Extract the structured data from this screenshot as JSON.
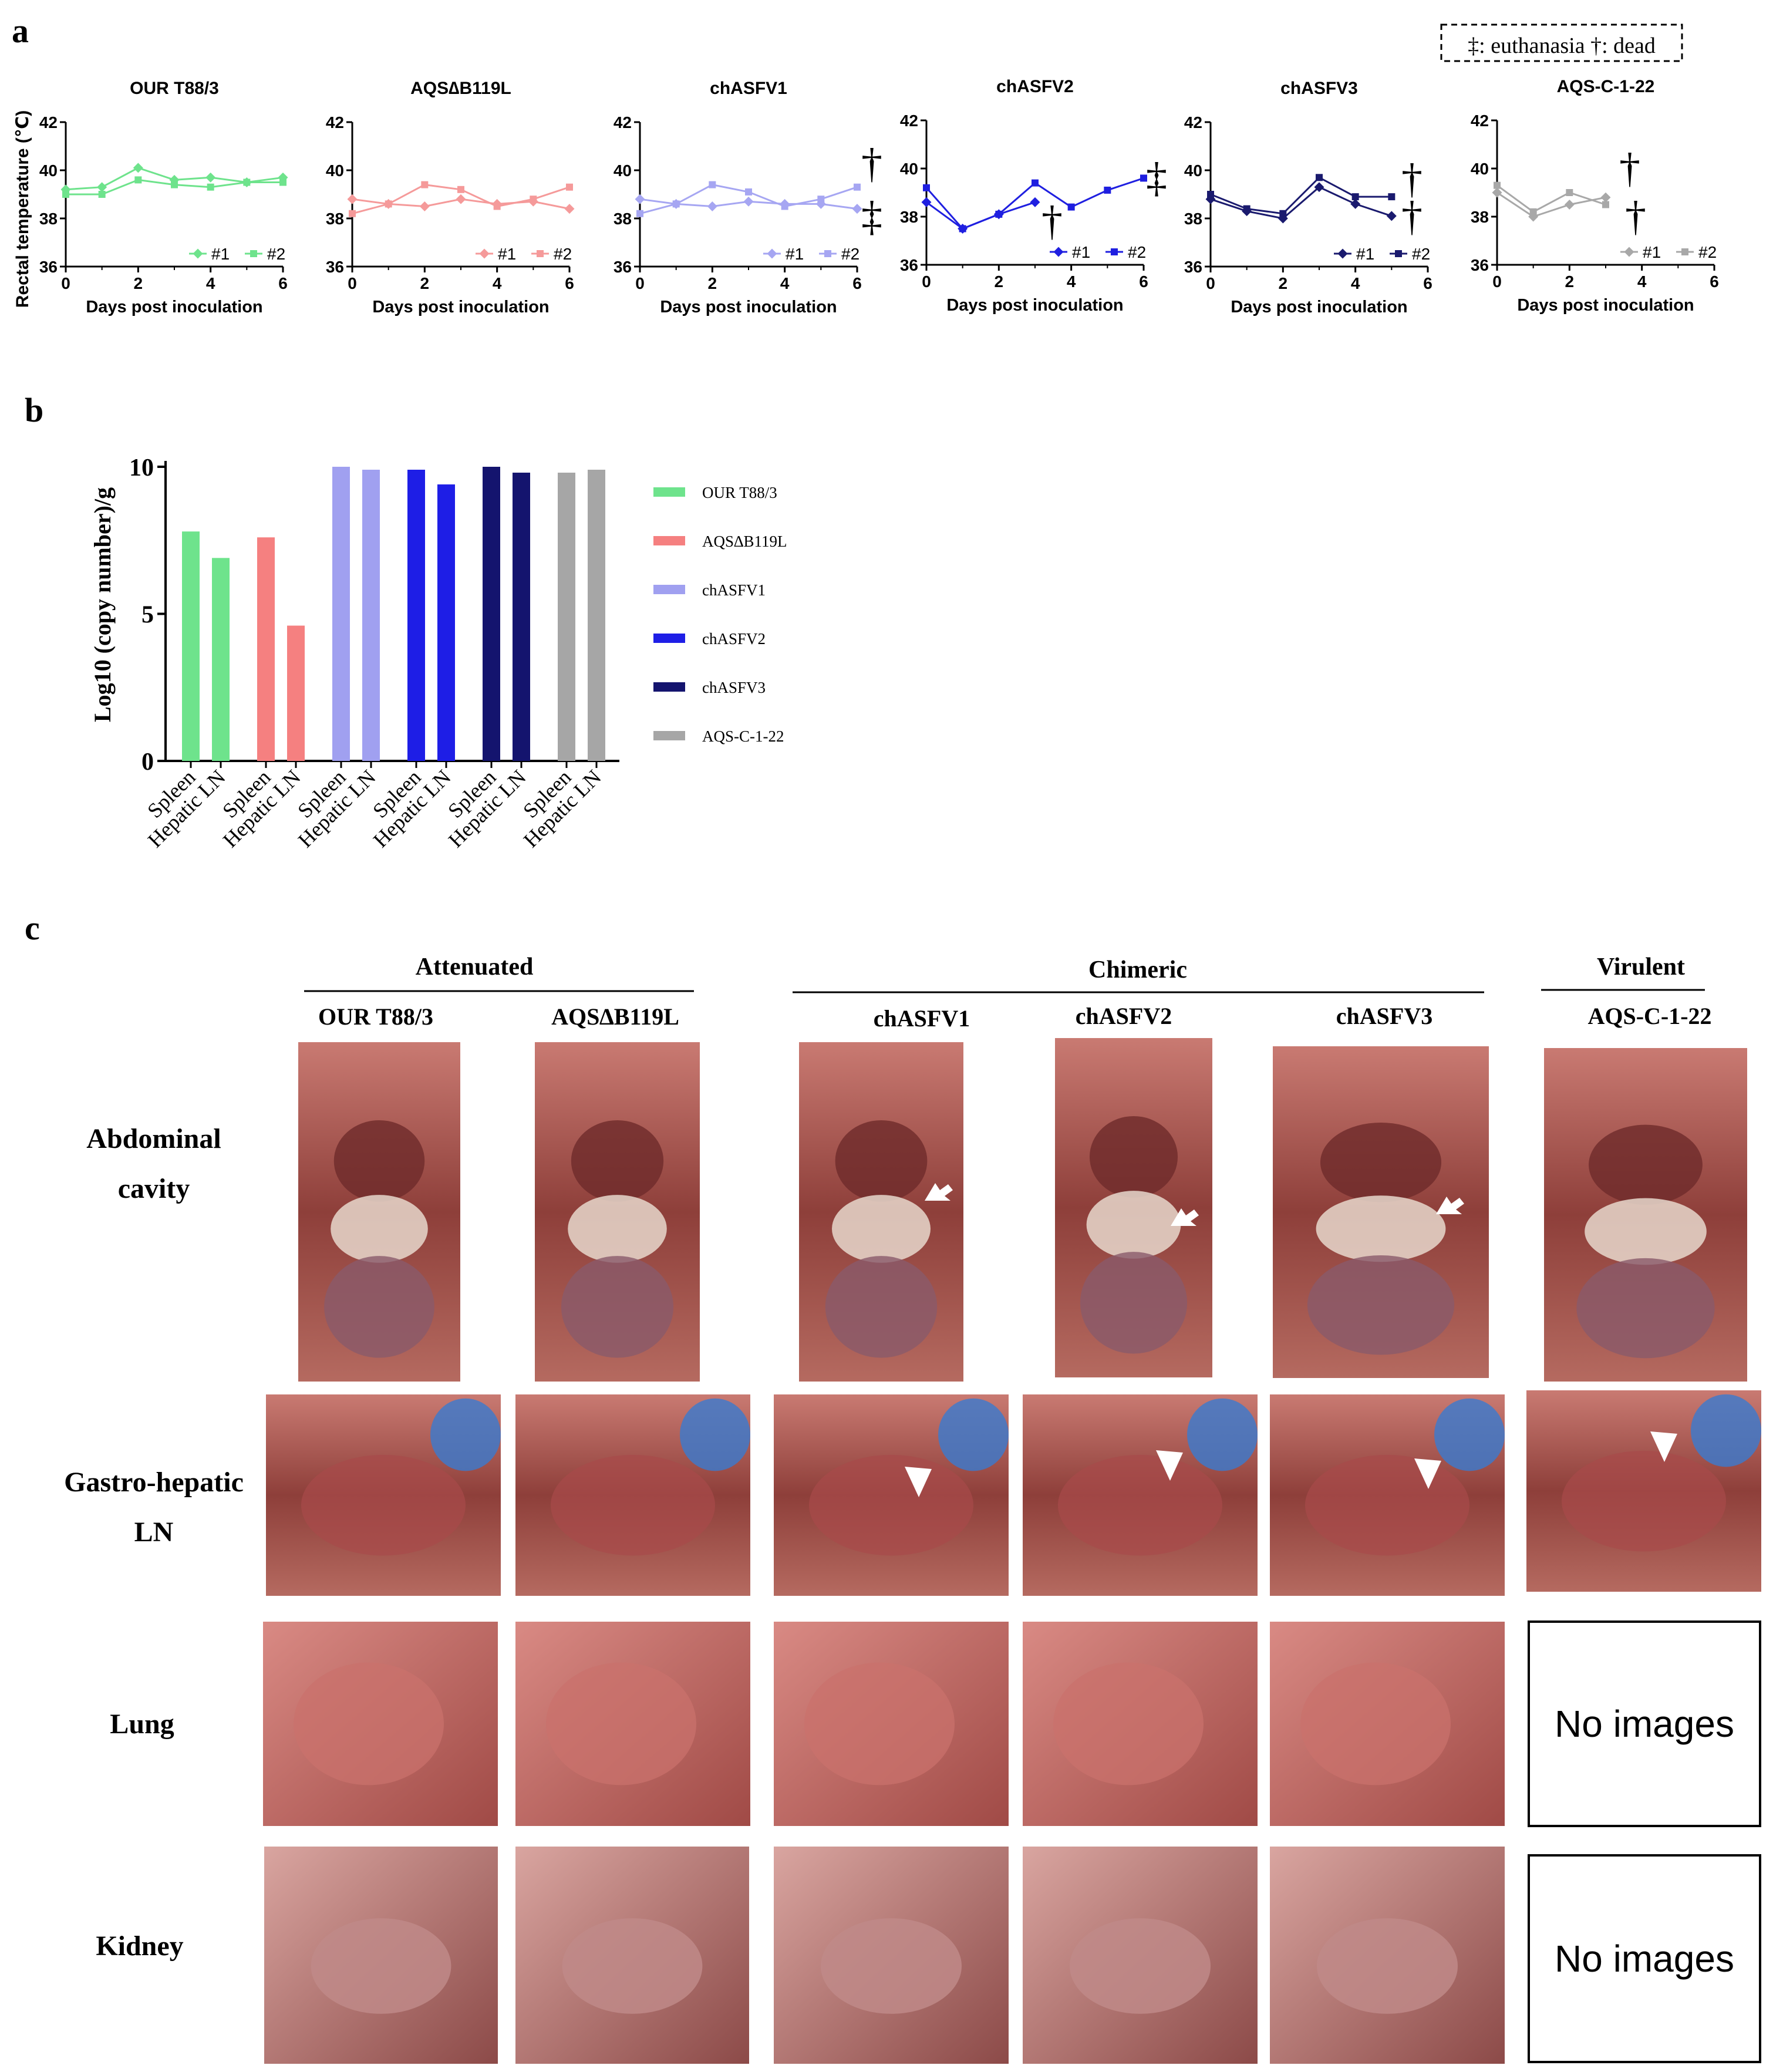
{
  "panel_labels": {
    "a": "a",
    "b": "b",
    "c": "c"
  },
  "legend_box": "‡: euthanasia  †: dead",
  "marks": {
    "dead": "†",
    "euthanasia": "‡"
  },
  "panel_a": {
    "ylabel": "Rectal temperature (℃)",
    "xlabel": "Days post inoculation",
    "series_names": [
      "#1",
      "#2"
    ],
    "x_ticks": [
      "0",
      "2",
      "4",
      "6"
    ],
    "y_ticks": [
      "36",
      "38",
      "40",
      "42"
    ]
  },
  "chart_data": [
    {
      "type": "line",
      "title": "OUR T88/3",
      "xlabel": "Days post inoculation",
      "ylabel": "Rectal temperature (℃)",
      "xlim": [
        0,
        6
      ],
      "ylim": [
        36,
        42
      ],
      "color": "#6ee38c",
      "series": [
        {
          "name": "#1",
          "x": [
            0,
            1,
            2,
            3,
            4,
            5,
            6
          ],
          "y": [
            39.2,
            39.3,
            40.1,
            39.6,
            39.7,
            39.5,
            39.7
          ]
        },
        {
          "name": "#2",
          "x": [
            0,
            1,
            2,
            3,
            4,
            5,
            6
          ],
          "y": [
            39.0,
            39.0,
            39.6,
            39.4,
            39.3,
            39.5,
            39.5
          ]
        }
      ]
    },
    {
      "type": "line",
      "title": "AQS∆B119L",
      "xlabel": "Days post inoculation",
      "ylabel": "Rectal temperature (℃)",
      "xlim": [
        0,
        6
      ],
      "ylim": [
        36,
        42
      ],
      "color": "#f59a9a",
      "series": [
        {
          "name": "#1",
          "x": [
            0,
            1,
            2,
            3,
            4,
            5,
            6
          ],
          "y": [
            38.8,
            38.6,
            38.5,
            38.8,
            38.6,
            38.7,
            38.4
          ]
        },
        {
          "name": "#2",
          "x": [
            0,
            1,
            2,
            3,
            4,
            5,
            6
          ],
          "y": [
            38.2,
            38.6,
            39.4,
            39.2,
            38.5,
            38.8,
            39.3
          ]
        }
      ]
    },
    {
      "type": "line",
      "title": "chASFV1",
      "xlabel": "Days post inoculation",
      "ylabel": "Rectal temperature (℃)",
      "xlim": [
        0,
        6
      ],
      "ylim": [
        36,
        42
      ],
      "color": "#a6a6f2",
      "series": [
        {
          "name": "#1",
          "x": [
            0,
            1,
            2,
            3,
            4,
            5,
            6
          ],
          "y": [
            38.8,
            38.6,
            38.5,
            38.7,
            38.6,
            38.6,
            38.4
          ]
        },
        {
          "name": "#2",
          "x": [
            0,
            1,
            2,
            3,
            4,
            5,
            6
          ],
          "y": [
            38.2,
            38.6,
            39.4,
            39.1,
            38.5,
            38.8,
            39.3
          ]
        }
      ]
    },
    {
      "type": "line",
      "title": "chASFV2",
      "xlabel": "Days post inoculation",
      "ylabel": "Rectal temperature (℃)",
      "xlim": [
        0,
        6
      ],
      "ylim": [
        36,
        42
      ],
      "color": "#1f1fe0",
      "series": [
        {
          "name": "#1",
          "x": [
            0,
            1,
            2,
            3
          ],
          "y": [
            38.6,
            37.5,
            38.1,
            38.6
          ]
        },
        {
          "name": "#2",
          "x": [
            0,
            1,
            2,
            3,
            4,
            5,
            6
          ],
          "y": [
            39.2,
            37.5,
            38.1,
            39.4,
            38.4,
            39.1,
            39.6
          ]
        }
      ]
    },
    {
      "type": "line",
      "title": "chASFV3",
      "xlabel": "Days post inoculation",
      "ylabel": "Rectal temperature (℃)",
      "xlim": [
        0,
        6
      ],
      "ylim": [
        36,
        42
      ],
      "color": "#1a1a6e",
      "series": [
        {
          "name": "#1",
          "x": [
            0,
            1,
            2,
            3,
            4,
            5
          ],
          "y": [
            38.8,
            38.3,
            38.0,
            39.3,
            38.6,
            38.1
          ]
        },
        {
          "name": "#2",
          "x": [
            0,
            1,
            2,
            3,
            4,
            5
          ],
          "y": [
            39.0,
            38.4,
            38.2,
            39.7,
            38.9,
            38.9
          ]
        }
      ]
    },
    {
      "type": "line",
      "title": "AQS-C-1-22",
      "xlabel": "Days post inoculation",
      "ylabel": "Rectal temperature (℃)",
      "xlim": [
        0,
        6
      ],
      "ylim": [
        36,
        42
      ],
      "color": "#a8a8a8",
      "series": [
        {
          "name": "#1",
          "x": [
            0,
            1,
            2,
            3
          ],
          "y": [
            39.0,
            38.0,
            38.5,
            38.8
          ]
        },
        {
          "name": "#2",
          "x": [
            0,
            1,
            2,
            3
          ],
          "y": [
            39.3,
            38.2,
            39.0,
            38.5
          ]
        }
      ]
    },
    {
      "type": "bar",
      "title": "",
      "ylabel": "Log10 (copy number)/g",
      "ylim": [
        0,
        10
      ],
      "y_ticks": [
        "0",
        "5",
        "10"
      ],
      "categories": [
        "Spleen",
        "Hepatic LN"
      ],
      "series": [
        {
          "name": "OUR T88/3",
          "color": "#6ee38c",
          "values": [
            7.8,
            6.9
          ]
        },
        {
          "name": "AQS∆B119L",
          "color": "#f58080",
          "values": [
            7.6,
            4.6
          ]
        },
        {
          "name": "chASFV1",
          "color": "#a0a0f0",
          "values": [
            10.0,
            9.9
          ]
        },
        {
          "name": "chASFV2",
          "color": "#1e1ee6",
          "values": [
            9.9,
            9.4
          ]
        },
        {
          "name": "chASFV3",
          "color": "#14146e",
          "values": [
            10.0,
            9.8
          ]
        },
        {
          "name": "AQS-C-1-22",
          "color": "#a6a6a6",
          "values": [
            9.8,
            9.9
          ]
        }
      ]
    }
  ],
  "panel_c": {
    "groups": [
      {
        "name": "Attenuated",
        "columns": [
          "OUR T88/3",
          "AQS∆B119L"
        ]
      },
      {
        "name": "Chimeric",
        "columns": [
          "chASFV1",
          "chASFV2",
          "chASFV3"
        ]
      },
      {
        "name": "Virulent",
        "columns": [
          "AQS-C-1-22"
        ]
      }
    ],
    "rows": [
      {
        "label_line1": "Abdominal",
        "label_line2": "cavity"
      },
      {
        "label_line1": "Gastro-hepatic",
        "label_line2": "LN"
      },
      {
        "label_line1": "Lung",
        "label_line2": ""
      },
      {
        "label_line1": "Kidney",
        "label_line2": ""
      }
    ],
    "no_images_text": "No images"
  }
}
